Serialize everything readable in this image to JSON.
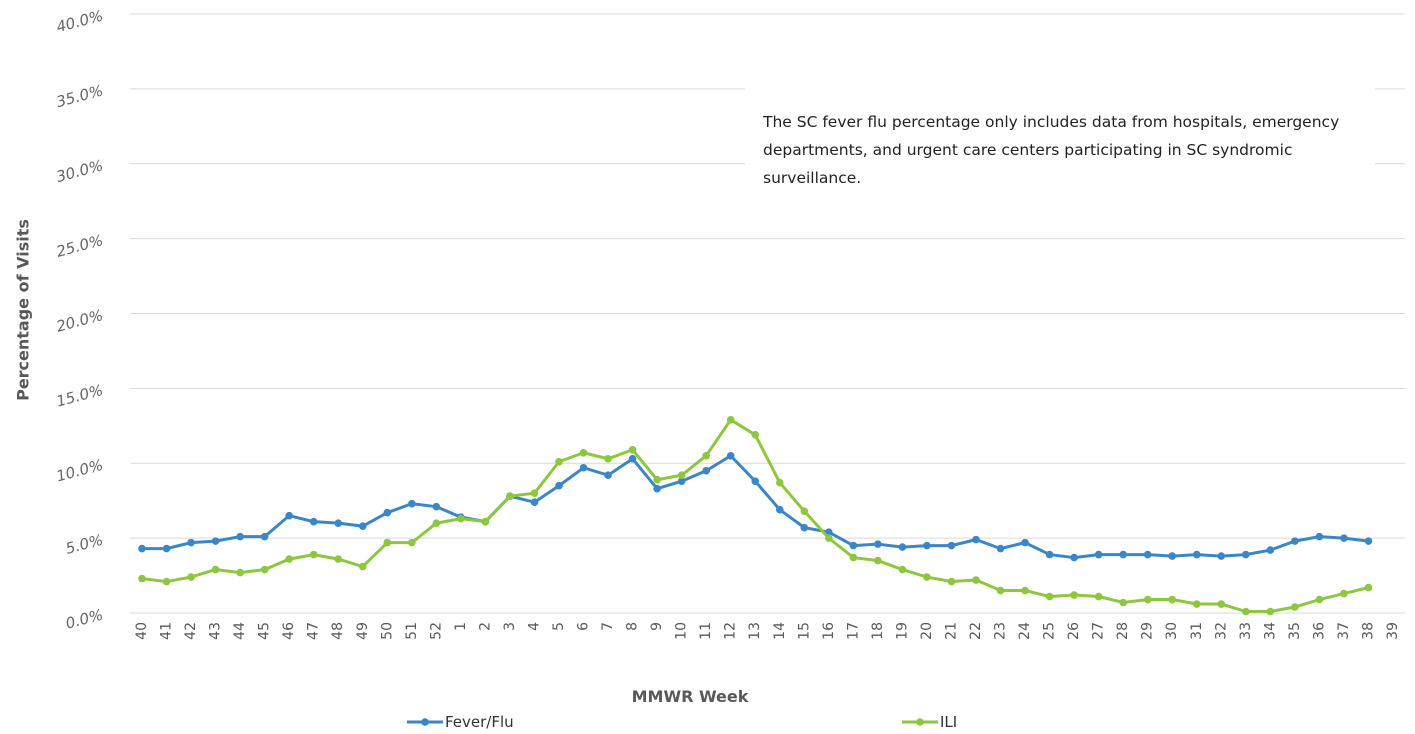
{
  "chart_data": {
    "type": "line",
    "y_label": "Percentage of Visits",
    "x_label": "MMWR Week",
    "annotation": "The SC fever flu percentage only includes data from hospitals, emergency departments, and urgent care centers participating in SC syndromic surveillance.",
    "categories": [
      "40",
      "41",
      "42",
      "43",
      "44",
      "45",
      "46",
      "47",
      "48",
      "49",
      "50",
      "51",
      "52",
      "1",
      "2",
      "3",
      "4",
      "5",
      "6",
      "7",
      "8",
      "9",
      "10",
      "11",
      "12",
      "13",
      "14",
      "15",
      "16",
      "17",
      "18",
      "19",
      "20",
      "21",
      "22",
      "23",
      "24",
      "25",
      "26",
      "27",
      "28",
      "29",
      "30",
      "31",
      "32",
      "33",
      "34",
      "35",
      "36",
      "37",
      "38",
      "39"
    ],
    "series": [
      {
        "name": "Fever/Flu",
        "color": "#3a86c8",
        "values": [
          4.3,
          4.3,
          4.7,
          4.8,
          5.1,
          5.1,
          6.5,
          6.1,
          6.0,
          5.8,
          6.7,
          7.3,
          7.1,
          6.4,
          6.1,
          7.8,
          7.4,
          8.5,
          9.7,
          9.2,
          10.3,
          8.3,
          8.8,
          9.5,
          10.5,
          8.8,
          6.9,
          5.7,
          5.4,
          4.5,
          4.6,
          4.4,
          4.5,
          4.5,
          4.9,
          4.3,
          4.7,
          3.9,
          3.7,
          3.9,
          3.9,
          3.9,
          3.8,
          3.9,
          3.8,
          3.9,
          4.2,
          4.8,
          5.1,
          5.0,
          4.8,
          null
        ]
      },
      {
        "name": "ILI",
        "color": "#8dc63f",
        "values": [
          2.3,
          2.1,
          2.4,
          2.9,
          2.7,
          2.9,
          3.6,
          3.9,
          3.6,
          3.1,
          4.7,
          4.7,
          6.0,
          6.3,
          6.1,
          7.8,
          8.0,
          10.1,
          10.7,
          10.3,
          10.9,
          8.9,
          9.2,
          10.5,
          12.9,
          11.9,
          8.7,
          6.8,
          5.0,
          3.7,
          3.5,
          2.9,
          2.4,
          2.1,
          2.2,
          1.5,
          1.5,
          1.1,
          1.2,
          1.1,
          0.7,
          0.9,
          0.9,
          0.6,
          0.6,
          0.1,
          0.1,
          0.4,
          0.9,
          1.3,
          1.7,
          null
        ]
      }
    ],
    "ylim": [
      0,
      40
    ],
    "yticks": [
      {
        "value": 0,
        "label": "0.0%"
      },
      {
        "value": 5,
        "label": "5.0%"
      },
      {
        "value": 10,
        "label": "10.0%"
      },
      {
        "value": 15,
        "label": "15.0%"
      },
      {
        "value": 20,
        "label": "20.0%"
      },
      {
        "value": 25,
        "label": "25.0%"
      },
      {
        "value": 30,
        "label": "30.0%"
      },
      {
        "value": 35,
        "label": "35.0%"
      },
      {
        "value": 40,
        "label": "40.0%"
      }
    ],
    "grid": true
  }
}
